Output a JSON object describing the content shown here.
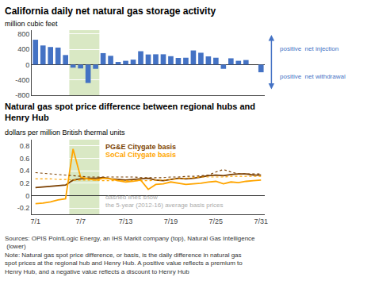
{
  "chart_data": [
    {
      "type": "bar",
      "title": "California daily net natural gas storage activity",
      "ylabel": "million cubic feet",
      "x": [
        1,
        2,
        3,
        4,
        5,
        6,
        7,
        8,
        9,
        10,
        11,
        12,
        13,
        14,
        15,
        16,
        17,
        18,
        19,
        20,
        21,
        22,
        23,
        24,
        25,
        26,
        27,
        28,
        29,
        30,
        31
      ],
      "values": [
        650,
        500,
        460,
        445,
        250,
        -80,
        -100,
        -480,
        -110,
        300,
        230,
        70,
        100,
        130,
        350,
        265,
        270,
        270,
        220,
        175,
        180,
        370,
        310,
        215,
        180,
        -110,
        165,
        100,
        120,
        0,
        -200
      ],
      "color": "#4472C4",
      "xlim": [
        0.5,
        31.5
      ],
      "ylim": [
        -800,
        900
      ],
      "yticks": [
        -800,
        -400,
        0,
        400,
        800
      ],
      "grid": true,
      "tick_labels": "y",
      "highlight": [
        5.5,
        9.5
      ],
      "highlight_color": "#d9e8c4",
      "annotations": [
        "positive  net injection",
        "positive  net withdrawal"
      ],
      "annotation_color": "#4472C4"
    },
    {
      "type": "line",
      "title": "Natural gas spot price difference between regional hubs and\nHenry Hub",
      "ylabel": "dollars per million British thermal units",
      "x": [
        1,
        2,
        3,
        4,
        5,
        6,
        7,
        8,
        9,
        10,
        11,
        12,
        13,
        14,
        15,
        16,
        17,
        18,
        19,
        20,
        21,
        22,
        23,
        24,
        25,
        26,
        27,
        28,
        29,
        30,
        31
      ],
      "xlim": [
        0.5,
        31.5
      ],
      "xticks": [
        {
          "value": 1,
          "label": "7/1"
        },
        {
          "value": 7,
          "label": "7/7"
        },
        {
          "value": 13,
          "label": "7/13"
        },
        {
          "value": 19,
          "label": "7/19"
        },
        {
          "value": 25,
          "label": "7/25"
        },
        {
          "value": 31,
          "label": "7/31"
        }
      ],
      "ylim": [
        -0.3,
        0.9
      ],
      "yticks": [
        -0.2,
        0,
        0.2,
        0.4,
        0.6,
        0.8
      ],
      "grid": true,
      "highlight": [
        5.5,
        9.5
      ],
      "highlight_color": "#d9e8c4",
      "series": [
        {
          "name": "PG&E Citygate basis",
          "color": "#7B3F00",
          "line_style": "solid",
          "values": [
            0.13,
            0.14,
            0.15,
            0.16,
            0.17,
            0.25,
            0.27,
            0.28,
            0.28,
            0.29,
            0.27,
            0.26,
            0.25,
            0.26,
            0.27,
            0.28,
            0.25,
            0.24,
            0.26,
            0.28,
            0.27,
            0.28,
            0.3,
            0.32,
            0.33,
            0.32,
            0.34,
            0.35,
            0.35,
            0.33,
            0.33
          ]
        },
        {
          "name": "SoCal Citygate basis",
          "color": "#FFA500",
          "line_style": "solid",
          "values": [
            -0.13,
            -0.12,
            -0.1,
            -0.07,
            -0.05,
            0.75,
            0.3,
            0.27,
            0.25,
            0.28,
            0.27,
            0.24,
            0.22,
            0.23,
            0.25,
            0.1,
            0.18,
            0.19,
            0.22,
            0.2,
            0.18,
            0.19,
            0.2,
            0.22,
            0.23,
            0.19,
            0.22,
            0.21,
            0.23,
            0.24,
            0.25
          ]
        },
        {
          "color": "#7B3F00",
          "line_style": "dotted",
          "values": [
            0.37,
            0.36,
            0.35,
            0.34,
            0.33,
            0.32,
            0.31,
            0.3,
            0.3,
            0.3,
            0.3,
            0.3,
            0.3,
            0.3,
            0.29,
            0.29,
            0.29,
            0.29,
            0.3,
            0.3,
            0.31,
            0.31,
            0.32,
            0.33,
            0.38,
            0.42,
            0.38,
            0.35,
            0.35,
            0.35,
            0.35
          ]
        },
        {
          "color": "#FFA500",
          "line_style": "dotted",
          "values": [
            0.27,
            0.27,
            0.27,
            0.26,
            0.26,
            0.25,
            0.25,
            0.25,
            0.25,
            0.24,
            0.24,
            0.24,
            0.24,
            0.24,
            0.24,
            0.24,
            0.25,
            0.25,
            0.26,
            0.27,
            0.28,
            0.29,
            0.3,
            0.3,
            0.3,
            0.3,
            0.31,
            0.31,
            0.31,
            0.31,
            0.31
          ]
        }
      ],
      "annotations": [
        "dashed lines show\nthe 5-year (2012-16) average basis prices"
      ],
      "annotation_color": "#aaaaaa",
      "source": "Sources: OPIS PointLogic Energy, an IHS Markit company (top), Natural Gas Intelligence\n (lower)\nNote: Natural gas spot price difference, or basis, is the daily difference in natural gas\nspot prices at the regional hub and Henry Hub. A positive value reflects a premium to\nHenry Hub, and a negative value reflects a discount to Henry Hub"
    }
  ]
}
